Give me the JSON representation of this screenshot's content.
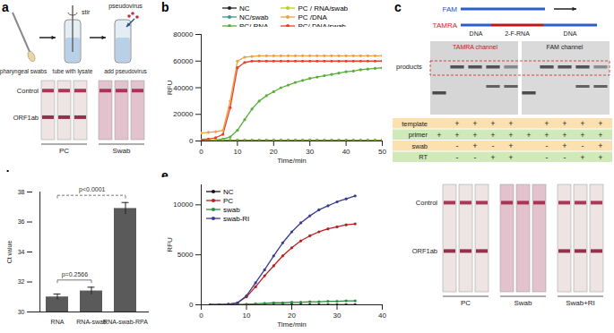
{
  "chart_data": [
    {
      "type": "line",
      "title": "b",
      "x_label": "Time/min",
      "y_label": "RFU",
      "x": [
        0,
        2,
        4,
        6,
        8,
        10,
        12,
        14,
        16,
        18,
        20,
        22,
        24,
        26,
        28,
        30,
        32,
        34,
        36,
        38,
        40,
        42,
        44,
        46,
        48,
        50
      ],
      "xlim": [
        0,
        50
      ],
      "xticks": [
        0,
        10,
        20,
        30,
        40,
        50
      ],
      "ylim": [
        0,
        80000
      ],
      "yticks": [
        0,
        20000,
        40000,
        60000,
        80000
      ],
      "legend": "top",
      "marker": "circle",
      "series": [
        {
          "name": "NC",
          "color": "#222222",
          "values": [
            600,
            600,
            600,
            600,
            600,
            600,
            600,
            600,
            600,
            600,
            600,
            600,
            600,
            600,
            600,
            600,
            600,
            600,
            600,
            600,
            600,
            600,
            600,
            600,
            600,
            600
          ]
        },
        {
          "name": "NC/swab",
          "color": "#3f8f8f",
          "values": [
            400,
            400,
            400,
            400,
            400,
            400,
            400,
            400,
            400,
            400,
            400,
            400,
            400,
            400,
            400,
            400,
            400,
            400,
            400,
            400,
            400,
            400,
            400,
            400,
            400,
            400
          ]
        },
        {
          "name": "PC/ RNA",
          "color": "#5aae3c",
          "values": [
            500,
            600,
            800,
            1500,
            3000,
            8000,
            16000,
            24000,
            30000,
            34000,
            37000,
            40000,
            42000,
            44000,
            45500,
            47000,
            48000,
            49000,
            50000,
            51000,
            52000,
            52500,
            53500,
            54000,
            54500,
            55000
          ]
        },
        {
          "name": "PC / RNA/swab",
          "color": "#b8cf2a",
          "values": [
            200,
            200,
            200,
            200,
            200,
            200,
            200,
            200,
            200,
            200,
            200,
            200,
            200,
            200,
            200,
            200,
            200,
            200,
            200,
            200,
            200,
            200,
            200,
            200,
            200,
            200
          ]
        },
        {
          "name": "PC /DNA",
          "color": "#f0a040",
          "values": [
            6000,
            6500,
            7000,
            8000,
            30000,
            60000,
            63000,
            63500,
            64000,
            64000,
            64000,
            64000,
            64000,
            64000,
            64000,
            64000,
            64000,
            64000,
            64000,
            64000,
            64000,
            64000,
            64000,
            64000,
            64000,
            64000
          ]
        },
        {
          "name": "PC/ DNA/swab",
          "color": "#e8402a",
          "values": [
            1000,
            1500,
            2500,
            5000,
            25000,
            55000,
            59000,
            60000,
            60000,
            60000,
            60000,
            60000,
            60000,
            60000,
            60000,
            60000,
            60000,
            60000,
            60000,
            60000,
            60000,
            60000,
            60000,
            60000,
            60000,
            60000
          ]
        }
      ]
    },
    {
      "type": "bar",
      "title": "d",
      "y_label": "Ct value",
      "categories": [
        "RNA",
        "RNA-swab",
        "RNA-swab-RPA"
      ],
      "values": [
        31.0,
        31.4,
        36.9
      ],
      "errors": [
        0.2,
        0.25,
        0.4
      ],
      "color": "#5a5a5a",
      "ylim": [
        30,
        38
      ],
      "yticks": [
        30,
        32,
        34,
        36,
        38
      ],
      "annotations": [
        {
          "text": "p=0.2566",
          "from": "RNA",
          "to": "RNA-swab",
          "line_style": "solid"
        },
        {
          "text": "p<0.0001",
          "from": "RNA",
          "to": "RNA-swab-RPA",
          "line_style": "dashed"
        }
      ]
    },
    {
      "type": "line",
      "title": "e",
      "x_label": "Time/min",
      "y_label": "RFU",
      "x": [
        2,
        4,
        6,
        8,
        10,
        12,
        14,
        16,
        18,
        20,
        22,
        24,
        26,
        28,
        30,
        32,
        34
      ],
      "xlim": [
        0,
        40
      ],
      "xticks": [
        0,
        10,
        20,
        30,
        40
      ],
      "ylim": [
        0,
        12000
      ],
      "yticks": [
        0,
        5000,
        10000
      ],
      "legend": "top-left",
      "marker": "circle",
      "series": [
        {
          "name": "NC",
          "color": "#111111",
          "values": [
            0,
            0,
            0,
            0,
            0,
            0,
            0,
            0,
            0,
            0,
            0,
            0,
            0,
            0,
            0,
            0,
            0
          ]
        },
        {
          "name": "PC",
          "color": "#b22222",
          "values": [
            0,
            0,
            50,
            200,
            800,
            1800,
            2900,
            3900,
            4900,
            5700,
            6400,
            6900,
            7300,
            7600,
            7800,
            8000,
            8100
          ]
        },
        {
          "name": "swab",
          "color": "#2e8b3e",
          "values": [
            0,
            0,
            0,
            0,
            50,
            100,
            150,
            200,
            200,
            250,
            250,
            300,
            300,
            350,
            350,
            400,
            400
          ]
        },
        {
          "name": "swab-RI",
          "color": "#3b3b8f",
          "values": [
            0,
            0,
            50,
            200,
            900,
            2200,
            3500,
            4900,
            6200,
            7300,
            8200,
            8900,
            9500,
            9900,
            10300,
            10600,
            10900
          ]
        }
      ]
    }
  ],
  "panels": {
    "a": {
      "label": "a",
      "steps": [
        "pharyngeal swabs",
        "tube with lysate",
        "add pseudovirus"
      ],
      "step_notes": [
        "stir",
        "pseudovirus"
      ],
      "bands": [
        "Control",
        "ORF1ab"
      ],
      "groups": [
        {
          "label": "PC",
          "strips": 3,
          "bands": [
            "Control",
            "ORF1ab"
          ]
        },
        {
          "label": "Swab",
          "strips": 3,
          "bands": [
            "Control"
          ]
        }
      ]
    },
    "c": {
      "label": "c",
      "probe": {
        "labels": [
          "FAM",
          "TAMRA"
        ],
        "segments": [
          "DNA",
          "2-F-RNA",
          "DNA"
        ]
      },
      "gel": {
        "label": "products",
        "channels": [
          "TAMRA channel",
          "FAM channel"
        ]
      },
      "table": {
        "rows": [
          {
            "label": "template",
            "cells": [
              "",
              "+",
              "+",
              "+",
              "+",
              "",
              "+",
              "+",
              "+",
              "+"
            ]
          },
          {
            "label": "primer",
            "cells": [
              "+",
              "+",
              "+",
              "+",
              "+",
              "+",
              "+",
              "+",
              "+",
              "+"
            ]
          },
          {
            "label": "swab",
            "cells": [
              "",
              "-",
              "+",
              "-",
              "+",
              "",
              "-",
              "+",
              "-",
              "+"
            ]
          },
          {
            "label": "RT",
            "cells": [
              "",
              "-",
              "-",
              "+",
              "+",
              "",
              "-",
              "-",
              "+",
              "+"
            ]
          }
        ]
      }
    },
    "e_strips": {
      "bands": [
        "Control",
        "ORF1ab"
      ],
      "groups": [
        {
          "label": "PC",
          "strips": 3,
          "bands": [
            "Control",
            "ORF1ab"
          ]
        },
        {
          "label": "Swab",
          "strips": 3,
          "bands": [
            "Control"
          ]
        },
        {
          "label": "Swab+RI",
          "strips": 3,
          "bands": [
            "Control",
            "ORF1ab"
          ]
        }
      ]
    }
  }
}
